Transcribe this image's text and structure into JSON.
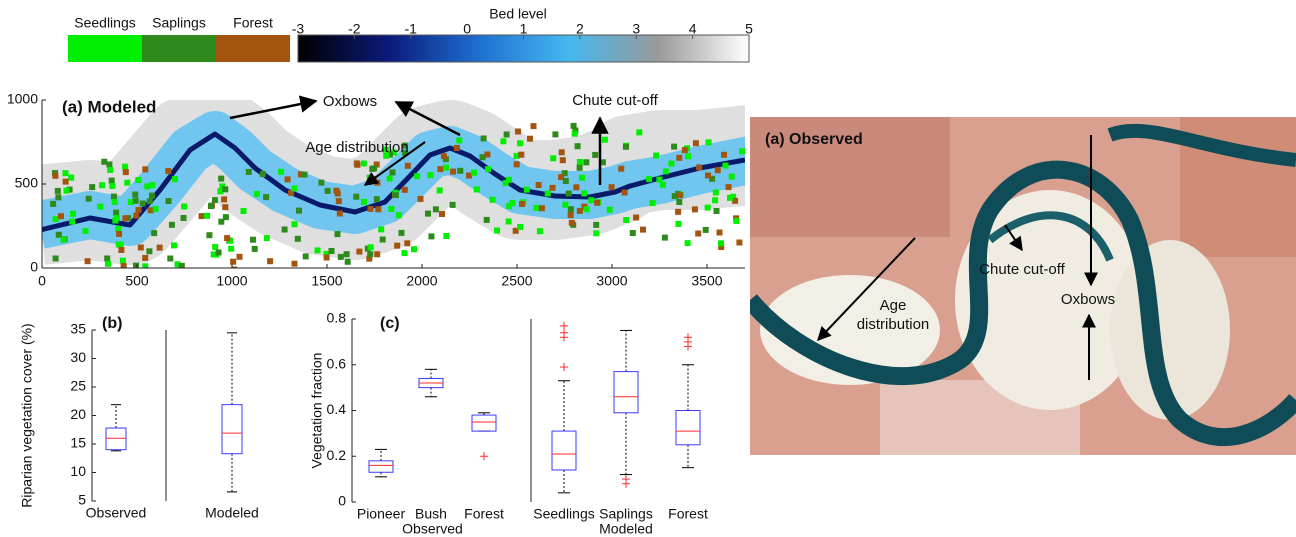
{
  "chart_data": [
    {
      "type": "swatch",
      "categories": [
        "Seedlings",
        "Saplings",
        "Forest"
      ],
      "colors": [
        "#00ee00",
        "#2f8a1c",
        "#a35510"
      ]
    },
    {
      "type": "colorbar",
      "title": "Bed level",
      "xlim": [
        -3,
        5
      ],
      "xticks": [
        -3,
        -2,
        -1,
        0,
        1,
        2,
        3,
        4,
        5
      ],
      "colors": [
        "#000000",
        "#0a1a7a",
        "#1e6fd0",
        "#45b8f0",
        "#9a9a9a",
        "#ffffff"
      ]
    },
    {
      "type": "map",
      "title": "(a) Modeled",
      "xlim": [
        0,
        3700
      ],
      "xticks": [
        0,
        500,
        1000,
        1500,
        2000,
        2500,
        3000,
        3500
      ],
      "ylim": [
        0,
        1000
      ],
      "yticks": [
        0,
        500,
        1000
      ],
      "annotations": [
        "Oxbows",
        "Age distribution",
        "Chute cut-off"
      ]
    },
    {
      "type": "box",
      "title": "(b)",
      "ylabel": "Riparian vegetation cover (%)",
      "categories": [
        "Observed",
        "Modeled"
      ],
      "min": [
        13.8,
        6.6
      ],
      "q1": [
        14.0,
        13.3
      ],
      "median": [
        16.0,
        16.9
      ],
      "q3": [
        17.8,
        21.9
      ],
      "max": [
        21.9,
        34.5
      ],
      "outliers": [
        [],
        []
      ],
      "ylim": [
        5,
        35
      ],
      "yticks": [
        5,
        10,
        15,
        20,
        25,
        30,
        35
      ]
    },
    {
      "type": "box",
      "title": "(c)",
      "ylabel": "Vegetation fraction",
      "categories": [
        "Pioneer",
        "Bush",
        "Forest",
        "Seedlings",
        "Saplings",
        "Forest"
      ],
      "group_labels": [
        "Observed",
        "Modeled"
      ],
      "min": [
        0.11,
        0.46,
        0.31,
        0.04,
        0.12,
        0.15
      ],
      "q1": [
        0.13,
        0.5,
        0.31,
        0.14,
        0.39,
        0.25
      ],
      "median": [
        0.16,
        0.52,
        0.35,
        0.21,
        0.46,
        0.31
      ],
      "q3": [
        0.18,
        0.54,
        0.38,
        0.31,
        0.57,
        0.4
      ],
      "max": [
        0.23,
        0.58,
        0.39,
        0.53,
        0.75,
        0.6
      ],
      "outliers": [
        [],
        [],
        [
          0.2
        ],
        [
          0.77,
          0.74,
          0.72,
          0.59
        ],
        [
          0.1,
          0.08
        ],
        [
          0.72,
          0.7,
          0.68
        ]
      ],
      "ylim": [
        0,
        0.8
      ],
      "yticks": [
        0,
        0.2,
        0.4,
        0.6,
        0.8
      ]
    },
    {
      "type": "image",
      "title": "(a) Observed",
      "annotations": [
        "Chute cut-off",
        "Oxbows",
        "Age distribution"
      ]
    }
  ]
}
